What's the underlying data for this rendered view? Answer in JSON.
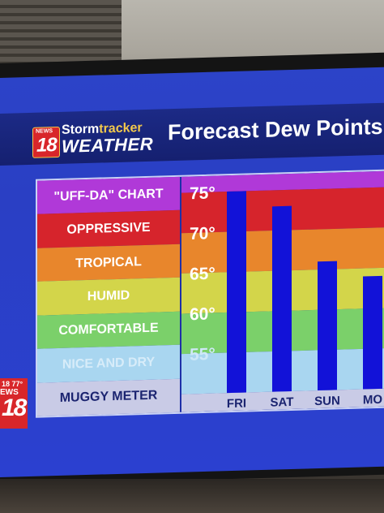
{
  "header": {
    "logo_news": "NEWS",
    "logo_number": "18",
    "brand_top_a": "Storm",
    "brand_top_b": "tracker",
    "brand_bottom": "WEATHER",
    "title": "Forecast Dew Points"
  },
  "legend": {
    "bands": [
      {
        "label": "\"UFF-DA\" CHART",
        "color": "#b039d8",
        "text_color": "#ffffff"
      },
      {
        "label": "OPPRESSIVE",
        "color": "#d6242c",
        "text_color": "#ffffff"
      },
      {
        "label": "TROPICAL",
        "color": "#e8862c",
        "text_color": "#ffffff"
      },
      {
        "label": "HUMID",
        "color": "#d3d54a",
        "text_color": "#ffffff"
      },
      {
        "label": "COMFORTABLE",
        "color": "#7bd06a",
        "text_color": "#ffffff"
      },
      {
        "label": "NICE AND DRY",
        "color": "#a9d6f0",
        "text_color": "#d7ecf9"
      },
      {
        "label": "MUGGY METER",
        "color": "#c9cbe6",
        "text_color": "#1b2470"
      }
    ]
  },
  "watermark": {
    "temp": "18 77°",
    "news": "EWS",
    "number": "18"
  },
  "colors": {
    "bar": "#1212d8",
    "screen_bg": "#2b40d0",
    "header_band": "#152070"
  },
  "chart_data": {
    "type": "bar",
    "title": "Forecast Dew Points",
    "categories": [
      "FRI",
      "SAT",
      "SUN",
      "MO"
    ],
    "values": [
      75,
      73,
      66,
      64
    ],
    "ylim": [
      50,
      77
    ],
    "y_ticks": [
      55,
      60,
      65,
      70,
      75
    ],
    "y_tick_labels": [
      "55°",
      "60°",
      "65°",
      "70°",
      "75°"
    ],
    "zones": [
      {
        "from": 75,
        "to": 77,
        "color": "#b039d8"
      },
      {
        "from": 70,
        "to": 75,
        "color": "#d6242c"
      },
      {
        "from": 65,
        "to": 70,
        "color": "#e8862c"
      },
      {
        "from": 60,
        "to": 65,
        "color": "#d3d54a"
      },
      {
        "from": 55,
        "to": 60,
        "color": "#7bd06a"
      },
      {
        "from": 50,
        "to": 55,
        "color": "#a9d6f0"
      }
    ],
    "xlabel": "",
    "ylabel": "",
    "grid": false
  }
}
